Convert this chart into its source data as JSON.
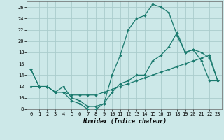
{
  "title": "",
  "xlabel": "Humidex (Indice chaleur)",
  "xlim": [
    -0.5,
    23.5
  ],
  "ylim": [
    8,
    27
  ],
  "yticks": [
    8,
    10,
    12,
    14,
    16,
    18,
    20,
    22,
    24,
    26
  ],
  "xticks": [
    0,
    1,
    2,
    3,
    4,
    5,
    6,
    7,
    8,
    9,
    10,
    11,
    12,
    13,
    14,
    15,
    16,
    17,
    18,
    19,
    20,
    21,
    22,
    23
  ],
  "bg_color": "#cce8e8",
  "grid_color": "#aacccc",
  "line_color": "#1a7a6e",
  "line1_x": [
    0,
    1,
    2,
    3,
    4,
    5,
    6,
    7,
    8,
    9,
    10,
    11,
    12,
    13,
    14,
    15,
    16,
    17,
    18,
    19,
    20,
    21,
    22,
    23
  ],
  "line1_y": [
    15,
    12,
    12,
    11,
    11,
    9.5,
    9,
    8,
    8,
    9,
    14,
    17.5,
    22,
    24,
    24.5,
    26.5,
    26,
    25,
    21,
    18,
    18.5,
    16.5,
    13,
    13
  ],
  "line2_x": [
    0,
    1,
    2,
    3,
    4,
    5,
    6,
    7,
    8,
    9,
    10,
    11,
    12,
    13,
    14,
    15,
    16,
    17,
    18,
    19,
    20,
    21,
    22,
    23
  ],
  "line2_y": [
    15,
    12,
    12,
    11,
    12,
    10,
    9.5,
    8.5,
    8.5,
    9,
    11,
    12.5,
    13,
    14,
    14,
    16.5,
    17.5,
    19,
    21.5,
    18,
    18.5,
    18,
    17,
    13
  ],
  "line3_x": [
    0,
    1,
    2,
    3,
    4,
    5,
    6,
    7,
    8,
    9,
    10,
    11,
    12,
    13,
    14,
    15,
    16,
    17,
    18,
    19,
    20,
    21,
    22,
    23
  ],
  "line3_y": [
    12,
    12,
    12,
    11,
    11,
    10.5,
    10.5,
    10.5,
    10.5,
    11,
    11.5,
    12,
    12.5,
    13,
    13.5,
    14,
    14.5,
    15,
    15.5,
    16,
    16.5,
    17,
    17.5,
    13
  ],
  "marker": "D",
  "markersize": 2.2,
  "linewidth": 0.9
}
